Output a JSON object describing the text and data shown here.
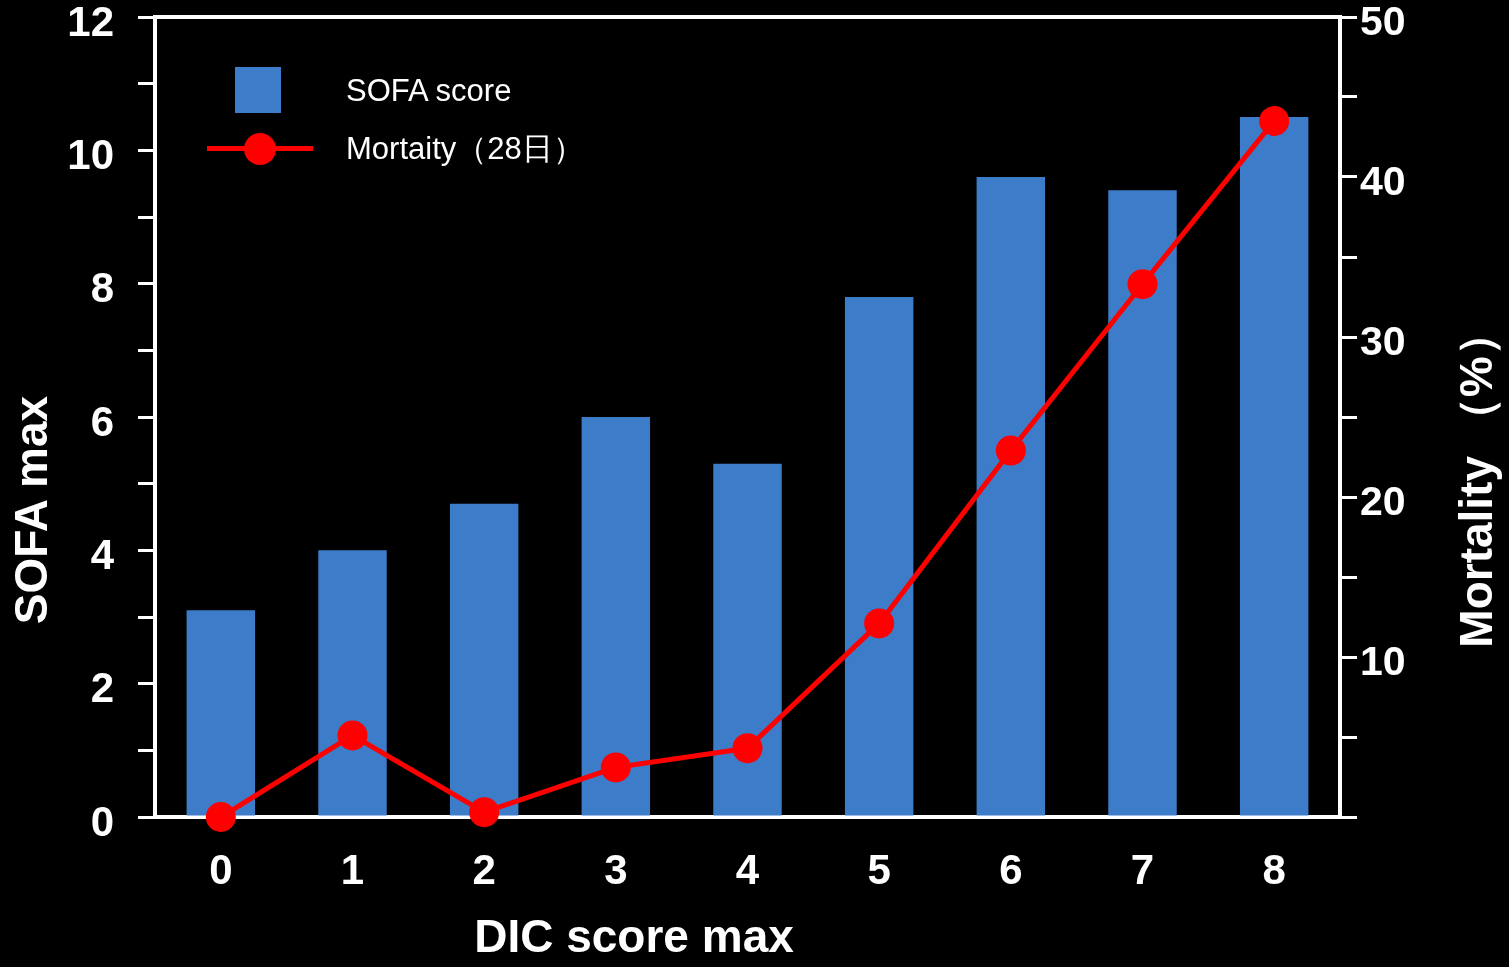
{
  "chart_data": {
    "type": "bar",
    "xlabel": "DIC score max",
    "ylabel": "SOFA max",
    "y2label": "Mortality （%）",
    "categories": [
      "0",
      "1",
      "2",
      "3",
      "4",
      "5",
      "6",
      "7",
      "8"
    ],
    "series": [
      {
        "name": "SOFA score",
        "color": "#3d7cc9",
        "values": [
          3.1,
          4.0,
          4.7,
          6.0,
          5.3,
          7.8,
          9.6,
          9.4,
          10.5
        ]
      },
      {
        "name": "Mortaity（28日）",
        "type": "line",
        "axis": "y2",
        "color": "#ff0000",
        "values": [
          0,
          5.1,
          0.3,
          3.1,
          4.3,
          12.1,
          22.9,
          33.3,
          43.5
        ]
      }
    ],
    "ylim": [
      0,
      12
    ],
    "yticks": [
      0,
      {
        "value": 1,
        "label": null
      },
      2,
      {
        "value": 3,
        "label": null
      },
      4,
      {
        "value": 5,
        "label": null
      },
      6,
      {
        "value": 7,
        "label": null
      },
      8,
      {
        "value": 9,
        "label": null
      },
      10,
      {
        "value": 11,
        "label": null
      },
      12
    ],
    "y2lim": [
      0,
      50
    ],
    "y2ticks": [
      {
        "value": 0,
        "label": null
      },
      {
        "value": 5,
        "label": null
      },
      10,
      {
        "value": 15,
        "label": null
      },
      20,
      {
        "value": 25,
        "label": null
      },
      30,
      {
        "value": 35,
        "label": null
      },
      40,
      {
        "value": 45,
        "label": null
      },
      50
    ],
    "legend": "top left",
    "marker": "circle",
    "line_style": "solid"
  }
}
